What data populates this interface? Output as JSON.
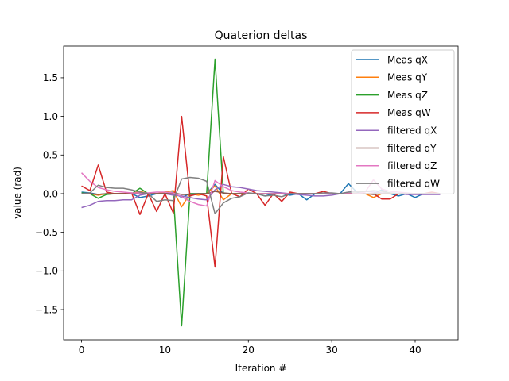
{
  "chart_data": {
    "type": "line",
    "title": "Quaterion deltas",
    "xlabel": "Iteration #",
    "ylabel": "value (rad)",
    "xlim": [
      -2.15,
      45.15
    ],
    "ylim": [
      -1.89,
      1.91
    ],
    "xticks": [
      0,
      10,
      20,
      30,
      40
    ],
    "yticks": [
      -1.5,
      -1.0,
      -0.5,
      0.0,
      0.5,
      1.0,
      1.5
    ],
    "ytick_labels": [
      "−1.5",
      "−1.0",
      "−0.5",
      "0.0",
      "0.5",
      "1.0",
      "1.5"
    ],
    "legend_position": "upper right",
    "x": [
      0,
      1,
      2,
      3,
      4,
      5,
      6,
      7,
      8,
      9,
      10,
      11,
      12,
      13,
      14,
      15,
      16,
      17,
      18,
      19,
      20,
      21,
      22,
      23,
      24,
      25,
      26,
      27,
      28,
      29,
      30,
      31,
      32,
      33,
      34,
      35,
      36,
      37,
      38,
      39,
      40,
      41,
      42,
      43
    ],
    "series": [
      {
        "name": "Meas qX",
        "color": "#1f77b4",
        "values": [
          0.02,
          0.01,
          -0.01,
          0.0,
          0.0,
          0.0,
          0.0,
          -0.05,
          -0.03,
          0.0,
          0.0,
          0.02,
          -0.05,
          0.0,
          0.0,
          0.0,
          0.12,
          0.0,
          0.0,
          0.0,
          0.0,
          0.0,
          -0.03,
          0.0,
          0.0,
          -0.02,
          0.0,
          -0.08,
          0.0,
          0.0,
          0.0,
          0.0,
          0.13,
          0.02,
          0.0,
          0.0,
          0.05,
          0.0,
          -0.03,
          0.0,
          -0.05,
          0.0,
          0.0,
          0.0
        ]
      },
      {
        "name": "Meas qY",
        "color": "#ff7f0e",
        "values": [
          0.0,
          0.0,
          -0.02,
          0.0,
          0.0,
          0.0,
          0.0,
          0.03,
          0.0,
          0.0,
          0.02,
          0.04,
          -0.17,
          0.0,
          -0.02,
          0.0,
          0.1,
          -0.08,
          0.0,
          0.0,
          0.0,
          0.0,
          0.0,
          0.0,
          0.0,
          0.0,
          0.0,
          0.0,
          0.0,
          0.0,
          0.0,
          0.0,
          0.0,
          0.0,
          0.0,
          -0.05,
          0.0,
          0.0,
          0.0,
          0.0,
          0.0,
          0.0,
          0.0,
          0.0
        ]
      },
      {
        "name": "Meas qZ",
        "color": "#2ca02c",
        "values": [
          0.01,
          0.0,
          -0.06,
          -0.01,
          0.0,
          0.0,
          0.0,
          0.07,
          0.0,
          0.0,
          0.0,
          0.0,
          -1.71,
          0.0,
          0.0,
          0.0,
          1.74,
          0.0,
          0.0,
          0.0,
          0.0,
          0.0,
          0.0,
          0.0,
          0.0,
          0.0,
          0.0,
          0.0,
          0.0,
          0.0,
          0.0,
          0.0,
          0.0,
          0.0,
          0.0,
          0.0,
          0.0,
          0.0,
          0.0,
          0.0,
          0.0,
          0.0,
          0.0,
          0.0
        ]
      },
      {
        "name": "Meas qW",
        "color": "#d62728",
        "values": [
          0.1,
          0.04,
          0.37,
          0.02,
          0.0,
          0.0,
          0.01,
          -0.27,
          0.0,
          -0.23,
          0.0,
          -0.25,
          1.0,
          -0.03,
          0.0,
          -0.03,
          -0.95,
          0.48,
          0.0,
          -0.04,
          0.06,
          0.0,
          -0.15,
          0.0,
          -0.1,
          0.02,
          0.0,
          0.0,
          0.0,
          0.03,
          0.0,
          0.0,
          0.0,
          0.0,
          0.0,
          0.0,
          -0.07,
          -0.07,
          0.0,
          0.0,
          0.0,
          0.0,
          0.02,
          0.0
        ]
      },
      {
        "name": "filtered qX",
        "color": "#9467bd",
        "values": [
          -0.18,
          -0.15,
          -0.1,
          -0.09,
          -0.09,
          -0.08,
          -0.08,
          -0.02,
          0.0,
          0.0,
          0.0,
          -0.02,
          -0.03,
          -0.05,
          -0.07,
          -0.08,
          0.05,
          0.12,
          0.09,
          0.08,
          0.06,
          0.04,
          0.03,
          0.02,
          0.01,
          0.0,
          -0.01,
          -0.02,
          -0.03,
          -0.03,
          -0.02,
          0.0,
          0.02,
          0.03,
          0.03,
          0.02,
          0.01,
          0.01,
          0.0,
          -0.01,
          -0.01,
          -0.01,
          -0.01,
          -0.01
        ]
      },
      {
        "name": "filtered qY",
        "color": "#8c564b",
        "values": [
          0.0,
          0.0,
          -0.01,
          0.0,
          0.0,
          0.0,
          0.0,
          0.01,
          0.0,
          0.0,
          0.0,
          0.01,
          -0.01,
          -0.01,
          0.0,
          0.0,
          0.03,
          0.01,
          0.0,
          0.0,
          0.0,
          0.0,
          0.0,
          0.0,
          0.0,
          0.0,
          0.0,
          0.0,
          0.0,
          0.0,
          0.0,
          0.0,
          0.0,
          0.0,
          0.0,
          -0.01,
          0.0,
          0.0,
          0.0,
          0.0,
          0.0,
          0.0,
          0.0,
          0.0
        ]
      },
      {
        "name": "filtered qZ",
        "color": "#e377c2",
        "values": [
          0.27,
          0.16,
          0.08,
          0.05,
          0.03,
          0.02,
          0.01,
          0.01,
          0.01,
          0.02,
          0.02,
          0.01,
          -0.04,
          -0.1,
          -0.14,
          -0.16,
          0.17,
          0.09,
          0.04,
          0.02,
          0.01,
          0.0,
          0.0,
          0.0,
          0.0,
          0.0,
          0.0,
          0.0,
          0.0,
          0.0,
          0.0,
          0.0,
          0.0,
          0.0,
          0.02,
          0.18,
          0.06,
          0.03,
          0.02,
          0.01,
          0.0,
          0.0,
          0.0,
          0.0
        ]
      },
      {
        "name": "filtered qW",
        "color": "#7f7f7f",
        "values": [
          0.0,
          0.01,
          0.11,
          0.08,
          0.07,
          0.07,
          0.05,
          0.02,
          0.0,
          -0.1,
          -0.08,
          -0.09,
          0.19,
          0.21,
          0.2,
          0.16,
          -0.26,
          -0.12,
          -0.06,
          -0.04,
          0.01,
          0.0,
          -0.03,
          -0.02,
          -0.04,
          0.0,
          0.0,
          0.0,
          0.0,
          0.01,
          0.01,
          0.0,
          0.02,
          0.02,
          0.03,
          0.04,
          0.03,
          0.01,
          0.0,
          0.0,
          0.0,
          0.0,
          0.0,
          0.0
        ]
      }
    ]
  }
}
